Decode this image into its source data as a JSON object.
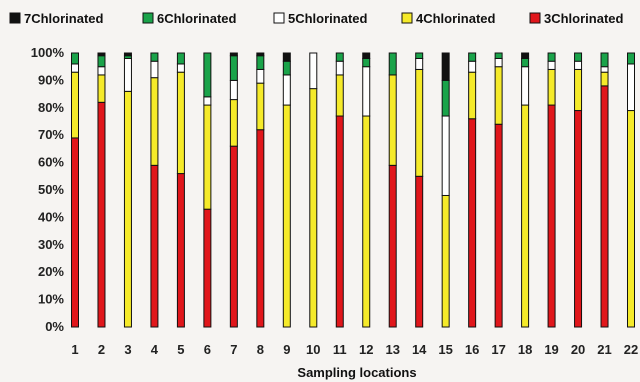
{
  "chart_data": {
    "type": "bar",
    "stacked": true,
    "percent": true,
    "xlabel": "Sampling locations",
    "ylabel": "",
    "ylim": [
      0,
      100
    ],
    "yticks": [
      "0%",
      "10%",
      "20%",
      "30%",
      "40%",
      "50%",
      "60%",
      "70%",
      "80%",
      "90%",
      "100%"
    ],
    "legend_position": "top",
    "categories": [
      "1",
      "2",
      "3",
      "4",
      "5",
      "6",
      "7",
      "8",
      "9",
      "10",
      "11",
      "12",
      "13",
      "14",
      "15",
      "16",
      "17",
      "18",
      "19",
      "20",
      "21",
      "22"
    ],
    "series": [
      {
        "name": "3Chlorinated",
        "color": "#e0161b",
        "values": [
          69,
          82,
          0,
          59,
          56,
          43,
          66,
          72,
          0,
          0,
          77,
          0,
          59,
          55,
          0,
          76,
          74,
          0,
          81,
          79,
          88,
          0
        ]
      },
      {
        "name": "4Chlorinated",
        "color": "#f5ea2a",
        "values": [
          24,
          10,
          86,
          32,
          37,
          38,
          17,
          17,
          81,
          87,
          15,
          77,
          33,
          39,
          48,
          17,
          21,
          81,
          13,
          15,
          5,
          79
        ]
      },
      {
        "name": "5Chlorinated",
        "color": "#ffffff",
        "values": [
          3,
          3,
          12,
          6,
          3,
          3,
          7,
          5,
          11,
          13,
          5,
          18,
          0,
          4,
          29,
          4,
          3,
          14,
          3,
          3,
          2,
          17
        ]
      },
      {
        "name": "6Chlorinated",
        "color": "#1aa34a",
        "values": [
          4,
          4,
          1,
          3,
          4,
          16,
          9,
          5,
          5,
          0,
          3,
          3,
          8,
          2,
          13,
          3,
          2,
          3,
          3,
          3,
          5,
          4
        ]
      },
      {
        "name": "7Chlorinated",
        "color": "#111111",
        "values": [
          0,
          1,
          1,
          0,
          0,
          0,
          1,
          1,
          3,
          0,
          0,
          2,
          0,
          0,
          10,
          0,
          0,
          2,
          0,
          0,
          0,
          0
        ]
      }
    ],
    "legend_order": [
      "7Chlorinated",
      "6Chlorinated",
      "5Chlorinated",
      "4Chlorinated",
      "3Chlorinated"
    ]
  }
}
